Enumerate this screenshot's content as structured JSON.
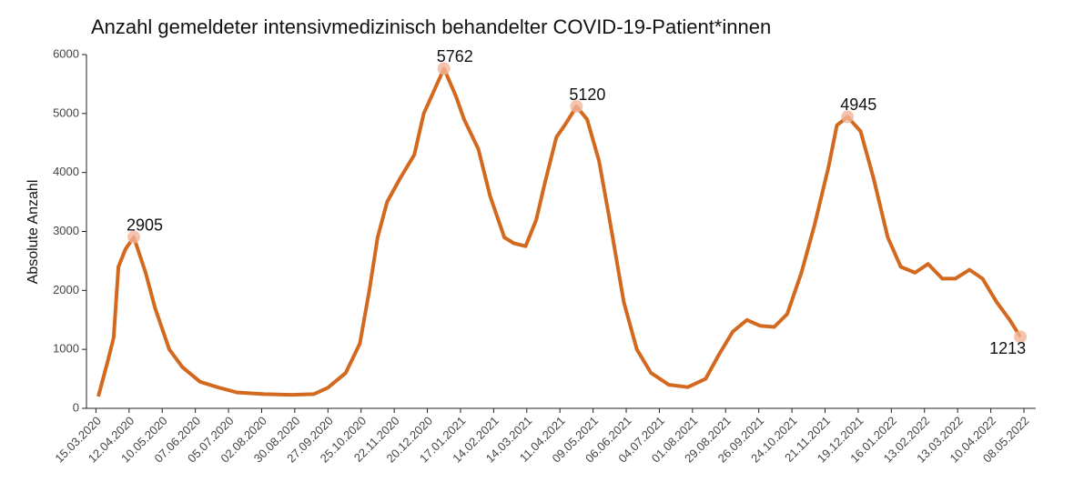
{
  "chart_data": {
    "type": "line",
    "title": "Anzahl gemeldeter intensivmedizinisch behandelter COVID-19-Patient*innen",
    "y_label": "Absolute Anzahl",
    "x": [
      "17.03.2020",
      "25.03.2020",
      "30.03.2020",
      "03.04.2020",
      "09.04.2020",
      "16.04.2020",
      "26.04.2020",
      "04.05.2020",
      "16.05.2020",
      "27.05.2020",
      "11.06.2020",
      "27.06.2020",
      "12.07.2020",
      "04.08.2020",
      "27.08.2020",
      "15.09.2020",
      "27.09.2020",
      "12.10.2020",
      "24.10.2020",
      "01.11.2020",
      "08.11.2020",
      "16.11.2020",
      "27.11.2020",
      "09.12.2020",
      "17.12.2020",
      "03.01.2021",
      "13.01.2021",
      "20.01.2021",
      "01.02.2021",
      "11.02.2021",
      "23.02.2021",
      "03.03.2021",
      "13.03.2021",
      "22.03.2021",
      "29.03.2021",
      "08.04.2021",
      "15.04.2021",
      "25.04.2021",
      "04.05.2021",
      "14.05.2021",
      "23.05.2021",
      "04.06.2021",
      "15.06.2021",
      "27.06.2021",
      "12.07.2021",
      "28.07.2021",
      "12.08.2021",
      "23.08.2021",
      "04.09.2021",
      "16.09.2021",
      "27.09.2021",
      "09.10.2021",
      "20.10.2021",
      "01.11.2021",
      "12.11.2021",
      "24.11.2021",
      "01.12.2021",
      "10.12.2021",
      "21.12.2021",
      "01.01.2022",
      "13.01.2022",
      "24.01.2022",
      "05.02.2022",
      "16.02.2022",
      "28.02.2022",
      "11.03.2022",
      "23.03.2022",
      "03.04.2022",
      "15.04.2022",
      "26.04.2022",
      "05.05.2022"
    ],
    "series": [
      {
        "color": "#d2691e",
        "values": [
          200,
          800,
          1200,
          2400,
          2700,
          2905,
          2300,
          1700,
          1000,
          700,
          450,
          350,
          270,
          240,
          230,
          240,
          350,
          600,
          1100,
          2000,
          2900,
          3500,
          3900,
          4300,
          5000,
          5762,
          5300,
          4900,
          4400,
          3600,
          2900,
          2800,
          2750,
          3200,
          3800,
          4600,
          4800,
          5120,
          4900,
          4200,
          3200,
          1800,
          1000,
          600,
          400,
          360,
          500,
          900,
          1300,
          1500,
          1400,
          1380,
          1600,
          2300,
          3100,
          4100,
          4800,
          4945,
          4700,
          3900,
          2900,
          2400,
          2300,
          2450,
          2200,
          2200,
          2350,
          2200,
          1800,
          1500,
          1213
        ]
      }
    ],
    "annotations": [
      {
        "x": "16.04.2020",
        "y": 2905
      },
      {
        "x": "03.01.2021",
        "y": 5762
      },
      {
        "x": "25.04.2021",
        "y": 5120
      },
      {
        "x": "10.12.2021",
        "y": 4945
      },
      {
        "x": "05.05.2022",
        "y": 1213
      }
    ],
    "annotation_color": "#f2b49a",
    "xlim": [
      "07.03.2020",
      "18.05.2022"
    ],
    "xticks": [
      "15.03.2020",
      "12.04.2020",
      "10.05.2020",
      "07.06.2020",
      "05.07.2020",
      "02.08.2020",
      "30.08.2020",
      "27.09.2020",
      "25.10.2020",
      "22.11.2020",
      "20.12.2020",
      "17.01.2021",
      "14.02.2021",
      "14.03.2021",
      "11.04.2021",
      "09.05.2021",
      "06.06.2021",
      "04.07.2021",
      "01.08.2021",
      "29.08.2021",
      "26.09.2021",
      "24.10.2021",
      "21.11.2021",
      "19.12.2021",
      "16.01.2022",
      "13.02.2022",
      "13.03.2022",
      "10.04.2022",
      "08.05.2022"
    ],
    "ylim": [
      0,
      6000
    ],
    "yticks": [
      0,
      1000,
      2000,
      3000,
      4000,
      5000,
      6000
    ]
  }
}
